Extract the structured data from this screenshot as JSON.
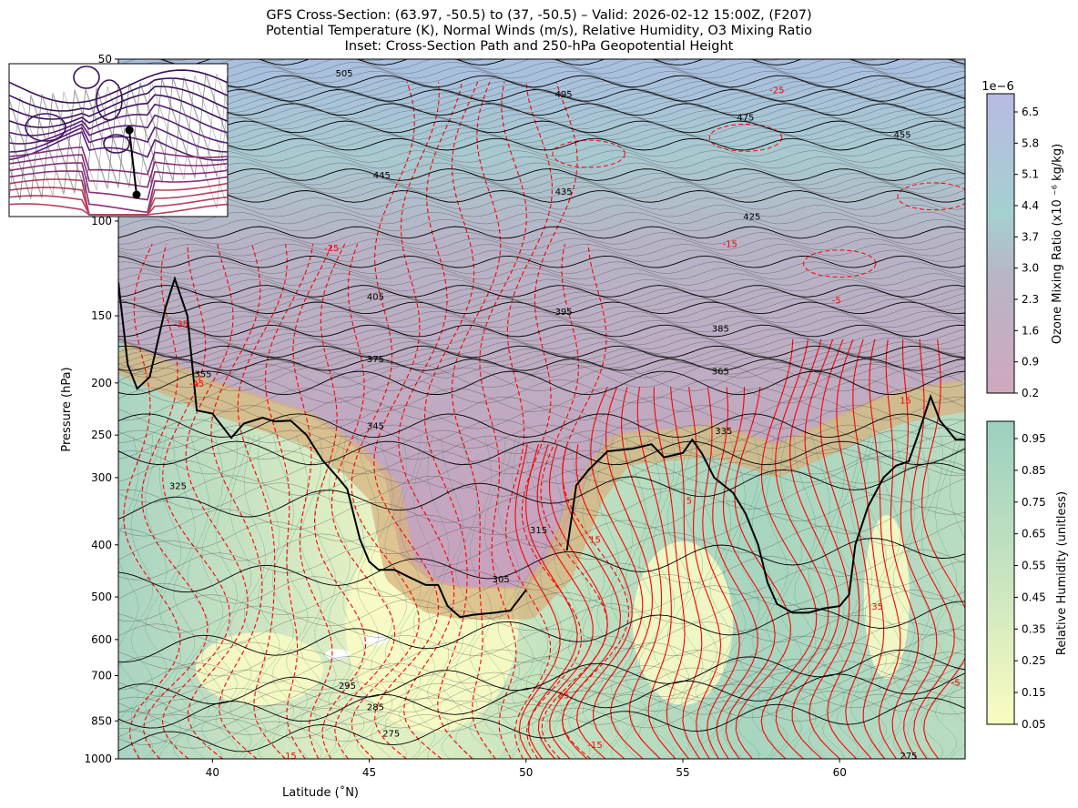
{
  "chart_data": {
    "type": "contour",
    "title_lines": [
      "GFS Cross-Section: (63.97, -50.5) to (37, -50.5) – Valid: 2026-02-12 15:00Z, (F207)",
      "Potential Temperature (K), Normal Winds (m/s), Relative Humidity, O3 Mixing Ratio",
      "Inset: Cross-Section Path and 250-hPa Geopotential Height"
    ],
    "xlabel": "Latitude (˚N)",
    "ylabel": "Pressure (hPa)",
    "xlim": [
      37,
      64
    ],
    "ylim": [
      1000,
      50
    ],
    "yscale": "log",
    "xticks": [
      40,
      45,
      50,
      55,
      60
    ],
    "yticks": [
      50,
      100,
      150,
      200,
      250,
      300,
      400,
      500,
      600,
      700,
      850,
      1000
    ],
    "theta_labels": [
      {
        "text": "505",
        "lat": 44.2,
        "p": 53
      },
      {
        "text": "495",
        "lat": 51.2,
        "p": 58
      },
      {
        "text": "475",
        "lat": 57,
        "p": 64
      },
      {
        "text": "455",
        "lat": 62,
        "p": 69
      },
      {
        "text": "445",
        "lat": 45.4,
        "p": 82
      },
      {
        "text": "435",
        "lat": 51.2,
        "p": 88
      },
      {
        "text": "425",
        "lat": 57.2,
        "p": 98
      },
      {
        "text": "405",
        "lat": 45.2,
        "p": 138
      },
      {
        "text": "395",
        "lat": 51.2,
        "p": 147
      },
      {
        "text": "385",
        "lat": 56.2,
        "p": 158
      },
      {
        "text": "375",
        "lat": 45.2,
        "p": 180
      },
      {
        "text": "365",
        "lat": 56.2,
        "p": 190
      },
      {
        "text": "355",
        "lat": 39.7,
        "p": 192
      },
      {
        "text": "345",
        "lat": 45.2,
        "p": 240
      },
      {
        "text": "335",
        "lat": 56.3,
        "p": 245
      },
      {
        "text": "325",
        "lat": 38.9,
        "p": 310
      },
      {
        "text": "315",
        "lat": 50.4,
        "p": 375
      },
      {
        "text": "305",
        "lat": 49.2,
        "p": 462
      },
      {
        "text": "295",
        "lat": 44.3,
        "p": 730
      },
      {
        "text": "285",
        "lat": 45.2,
        "p": 800
      },
      {
        "text": "275",
        "lat": 45.7,
        "p": 895
      },
      {
        "text": "275",
        "lat": 62.2,
        "p": 985
      }
    ],
    "wind_labels": [
      {
        "text": "-25",
        "lat": 58,
        "p": 57
      },
      {
        "text": "-25",
        "lat": 43.8,
        "p": 112
      },
      {
        "text": "-15",
        "lat": 56.5,
        "p": 110
      },
      {
        "text": "-5",
        "lat": 59.9,
        "p": 140
      },
      {
        "text": "-35",
        "lat": 39,
        "p": 155
      },
      {
        "text": "-45",
        "lat": 39.5,
        "p": 200
      },
      {
        "text": "15",
        "lat": 52.2,
        "p": 390
      },
      {
        "text": "5",
        "lat": 55.2,
        "p": 330
      },
      {
        "text": "15",
        "lat": 62.1,
        "p": 215
      },
      {
        "text": "35",
        "lat": 61.2,
        "p": 520
      },
      {
        "text": "25",
        "lat": 51.2,
        "p": 760
      },
      {
        "text": "-15",
        "lat": 52.2,
        "p": 940
      },
      {
        "text": "15",
        "lat": 42.5,
        "p": 985
      },
      {
        "text": "-5",
        "lat": 63.7,
        "p": 720
      }
    ],
    "tropopause_line": [
      [
        [
          37,
          130
        ],
        [
          37.3,
          185
        ],
        [
          37.6,
          205
        ],
        [
          38,
          195
        ],
        [
          38.5,
          145
        ],
        [
          38.8,
          128
        ],
        [
          39.2,
          150
        ],
        [
          39.5,
          225
        ],
        [
          40,
          228
        ],
        [
          40.6,
          253
        ],
        [
          41,
          238
        ],
        [
          41.6,
          232
        ],
        [
          42,
          236
        ],
        [
          42.5,
          235
        ],
        [
          43,
          250
        ],
        [
          43.5,
          278
        ],
        [
          44,
          300
        ],
        [
          44.3,
          315
        ],
        [
          44.7,
          390
        ],
        [
          45,
          430
        ],
        [
          45.3,
          445
        ],
        [
          45.8,
          445
        ],
        [
          46.3,
          460
        ],
        [
          46.8,
          475
        ],
        [
          47.2,
          475
        ],
        [
          47.5,
          520
        ],
        [
          47.9,
          545
        ],
        [
          48.3,
          540
        ],
        [
          49,
          535
        ],
        [
          49.5,
          530
        ],
        [
          50,
          485
        ]
      ],
      [
        [
          51.3,
          410
        ],
        [
          51.6,
          310
        ],
        [
          52,
          290
        ],
        [
          52.6,
          268
        ],
        [
          53.4,
          265
        ],
        [
          54,
          260
        ],
        [
          54.4,
          275
        ],
        [
          55,
          270
        ],
        [
          55.3,
          255
        ],
        [
          55.6,
          270
        ],
        [
          56,
          300
        ],
        [
          56.6,
          320
        ],
        [
          57,
          350
        ],
        [
          57.4,
          400
        ],
        [
          57.7,
          470
        ],
        [
          58,
          515
        ],
        [
          58.5,
          535
        ],
        [
          59,
          535
        ],
        [
          59.5,
          525
        ],
        [
          60,
          520
        ],
        [
          60.3,
          495
        ],
        [
          60.5,
          400
        ],
        [
          60.9,
          340
        ],
        [
          61.4,
          300
        ],
        [
          61.8,
          285
        ],
        [
          62.2,
          280
        ],
        [
          62.5,
          250
        ],
        [
          62.9,
          212
        ],
        [
          63.2,
          235
        ],
        [
          63.7,
          255
        ],
        [
          64,
          255
        ]
      ]
    ],
    "ozone_colorbar": {
      "label": "Ozone Mixing Ratio (x10 ⁻⁶ kg/kg)",
      "offset": "1e−6",
      "ticks": [
        "6.5",
        "5.8",
        "5.1",
        "4.4",
        "3.7",
        "3.0",
        "2.3",
        "1.6",
        "0.9",
        "0.2"
      ],
      "range": [
        0.2,
        7.0
      ],
      "colors": [
        "#c9a3bd",
        "#b8b6c6",
        "#a5d0d0",
        "#b3bde0"
      ]
    },
    "rh_colorbar": {
      "label": "Relative Humidity (unitless)",
      "ticks": [
        "0.95",
        "0.85",
        "0.75",
        "0.65",
        "0.55",
        "0.45",
        "0.35",
        "0.25",
        "0.15",
        "0.05"
      ],
      "range": [
        0.05,
        1.0
      ],
      "colors": [
        "#fafcc0",
        "#c3e2c0",
        "#9ccfc0"
      ]
    },
    "inset": {
      "path_start": [
        63.97,
        -50.5
      ],
      "path_end": [
        37,
        -50.5
      ],
      "contour_colors": [
        "#3b0f5e",
        "#5a1a78",
        "#8a2d7a",
        "#b5405e"
      ]
    }
  }
}
